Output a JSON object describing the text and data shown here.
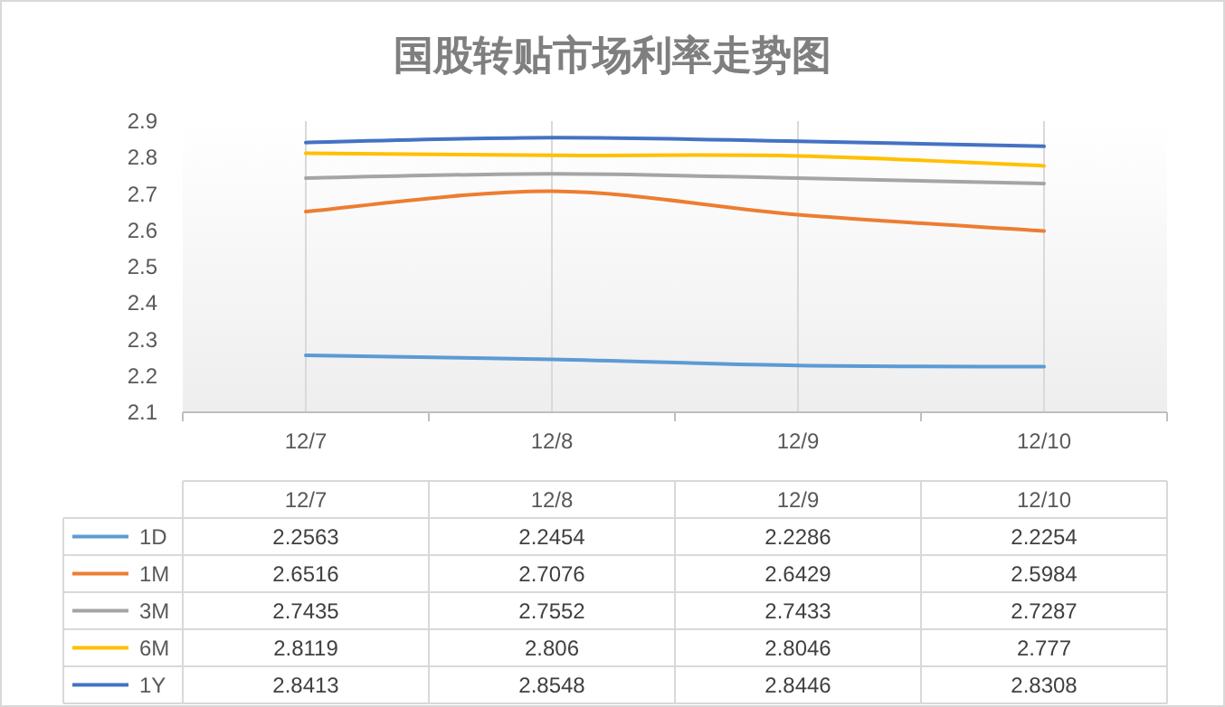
{
  "chart_data": {
    "type": "line",
    "title": "国股转贴市场利率走势图",
    "categories": [
      "12/7",
      "12/8",
      "12/9",
      "12/10"
    ],
    "series": [
      {
        "name": "1D",
        "color": "#5b9bd5",
        "values": [
          2.2563,
          2.2454,
          2.2286,
          2.2254
        ]
      },
      {
        "name": "1M",
        "color": "#ed7d31",
        "values": [
          2.6516,
          2.7076,
          2.6429,
          2.5984
        ]
      },
      {
        "name": "3M",
        "color": "#a5a5a5",
        "values": [
          2.7435,
          2.7552,
          2.7433,
          2.7287
        ]
      },
      {
        "name": "6M",
        "color": "#ffc000",
        "values": [
          2.8119,
          2.806,
          2.8046,
          2.777
        ]
      },
      {
        "name": "1Y",
        "color": "#4472c4",
        "values": [
          2.8413,
          2.8548,
          2.8446,
          2.8308
        ]
      }
    ],
    "value_labels": [
      [
        "2.2563",
        "2.2454",
        "2.2286",
        "2.2254"
      ],
      [
        "2.6516",
        "2.7076",
        "2.6429",
        "2.5984"
      ],
      [
        "2.7435",
        "2.7552",
        "2.7433",
        "2.7287"
      ],
      [
        "2.8119",
        "2.806",
        "2.8046",
        "2.777"
      ],
      [
        "2.8413",
        "2.8548",
        "2.8446",
        "2.8308"
      ]
    ],
    "ylim": [
      2.1,
      2.9
    ],
    "yticks": [
      2.1,
      2.2,
      2.3,
      2.4,
      2.5,
      2.6,
      2.7,
      2.8,
      2.9
    ],
    "grid": "x",
    "legend": "bottom left",
    "line_style": "solid",
    "marker": "none"
  }
}
